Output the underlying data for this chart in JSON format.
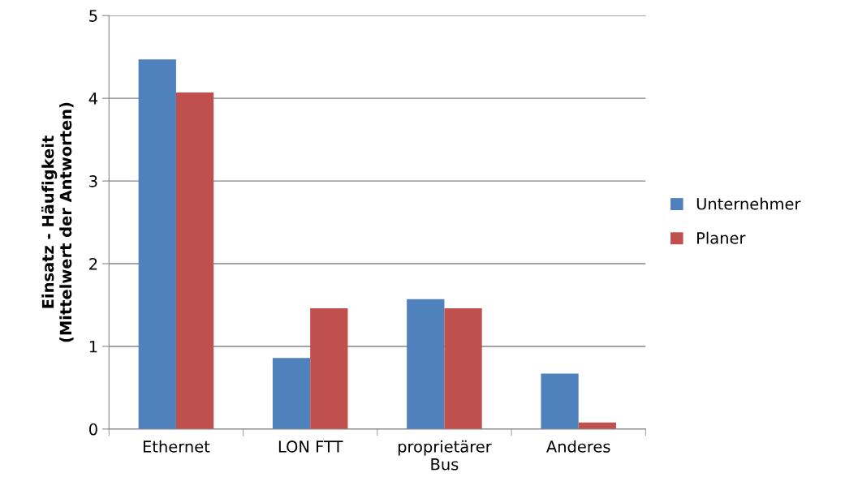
{
  "chart_data": {
    "type": "bar",
    "ylabel": "Einsatz - Häufigkeit\n(Mittelwert der Antworten)",
    "categories": [
      "Ethernet",
      "LON FTT",
      "proprietärer\nBus",
      "Anderes"
    ],
    "series": [
      {
        "name": "Unternehmer",
        "color": "#4f81bd",
        "values": [
          4.47,
          0.86,
          1.57,
          0.67
        ]
      },
      {
        "name": "Planer",
        "color": "#c0504d",
        "values": [
          4.07,
          1.46,
          1.46,
          0.08
        ]
      }
    ],
    "ylim": [
      0,
      5
    ],
    "yticks": [
      0,
      1,
      2,
      3,
      4,
      5
    ],
    "grid": "y",
    "legend": "right"
  }
}
